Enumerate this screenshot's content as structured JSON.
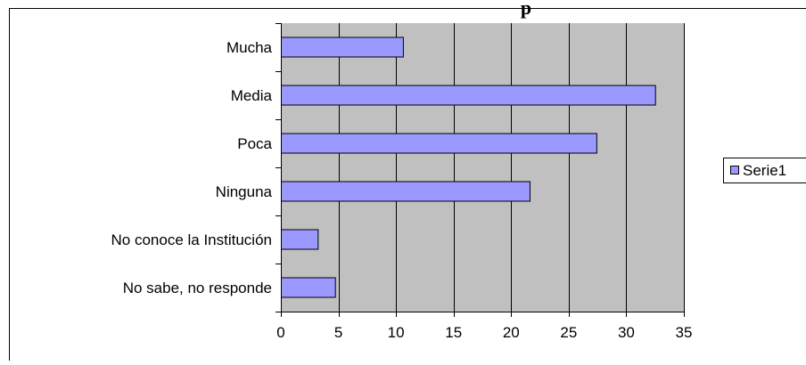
{
  "chart_data": {
    "type": "bar",
    "orientation": "horizontal",
    "title": "",
    "xlabel": "",
    "ylabel": "",
    "categories": [
      "Mucha",
      "Media",
      "Poca",
      "Ninguna",
      "No conoce la Institución",
      "No sabe, no responde"
    ],
    "series": [
      {
        "name": "Serie1",
        "values": [
          10.6,
          32.5,
          27.4,
          21.6,
          3.2,
          4.7
        ]
      }
    ],
    "xlim": [
      0,
      35
    ],
    "xticks": [
      0,
      5,
      10,
      15,
      20,
      25,
      30,
      35
    ],
    "grid": true,
    "legend": "right"
  },
  "colors": {
    "plot_bg": "#c0c0c0",
    "bar_fill": "#9999ff",
    "bar_stroke": "#000000",
    "grid": "#000000"
  },
  "title_fragment": "p"
}
